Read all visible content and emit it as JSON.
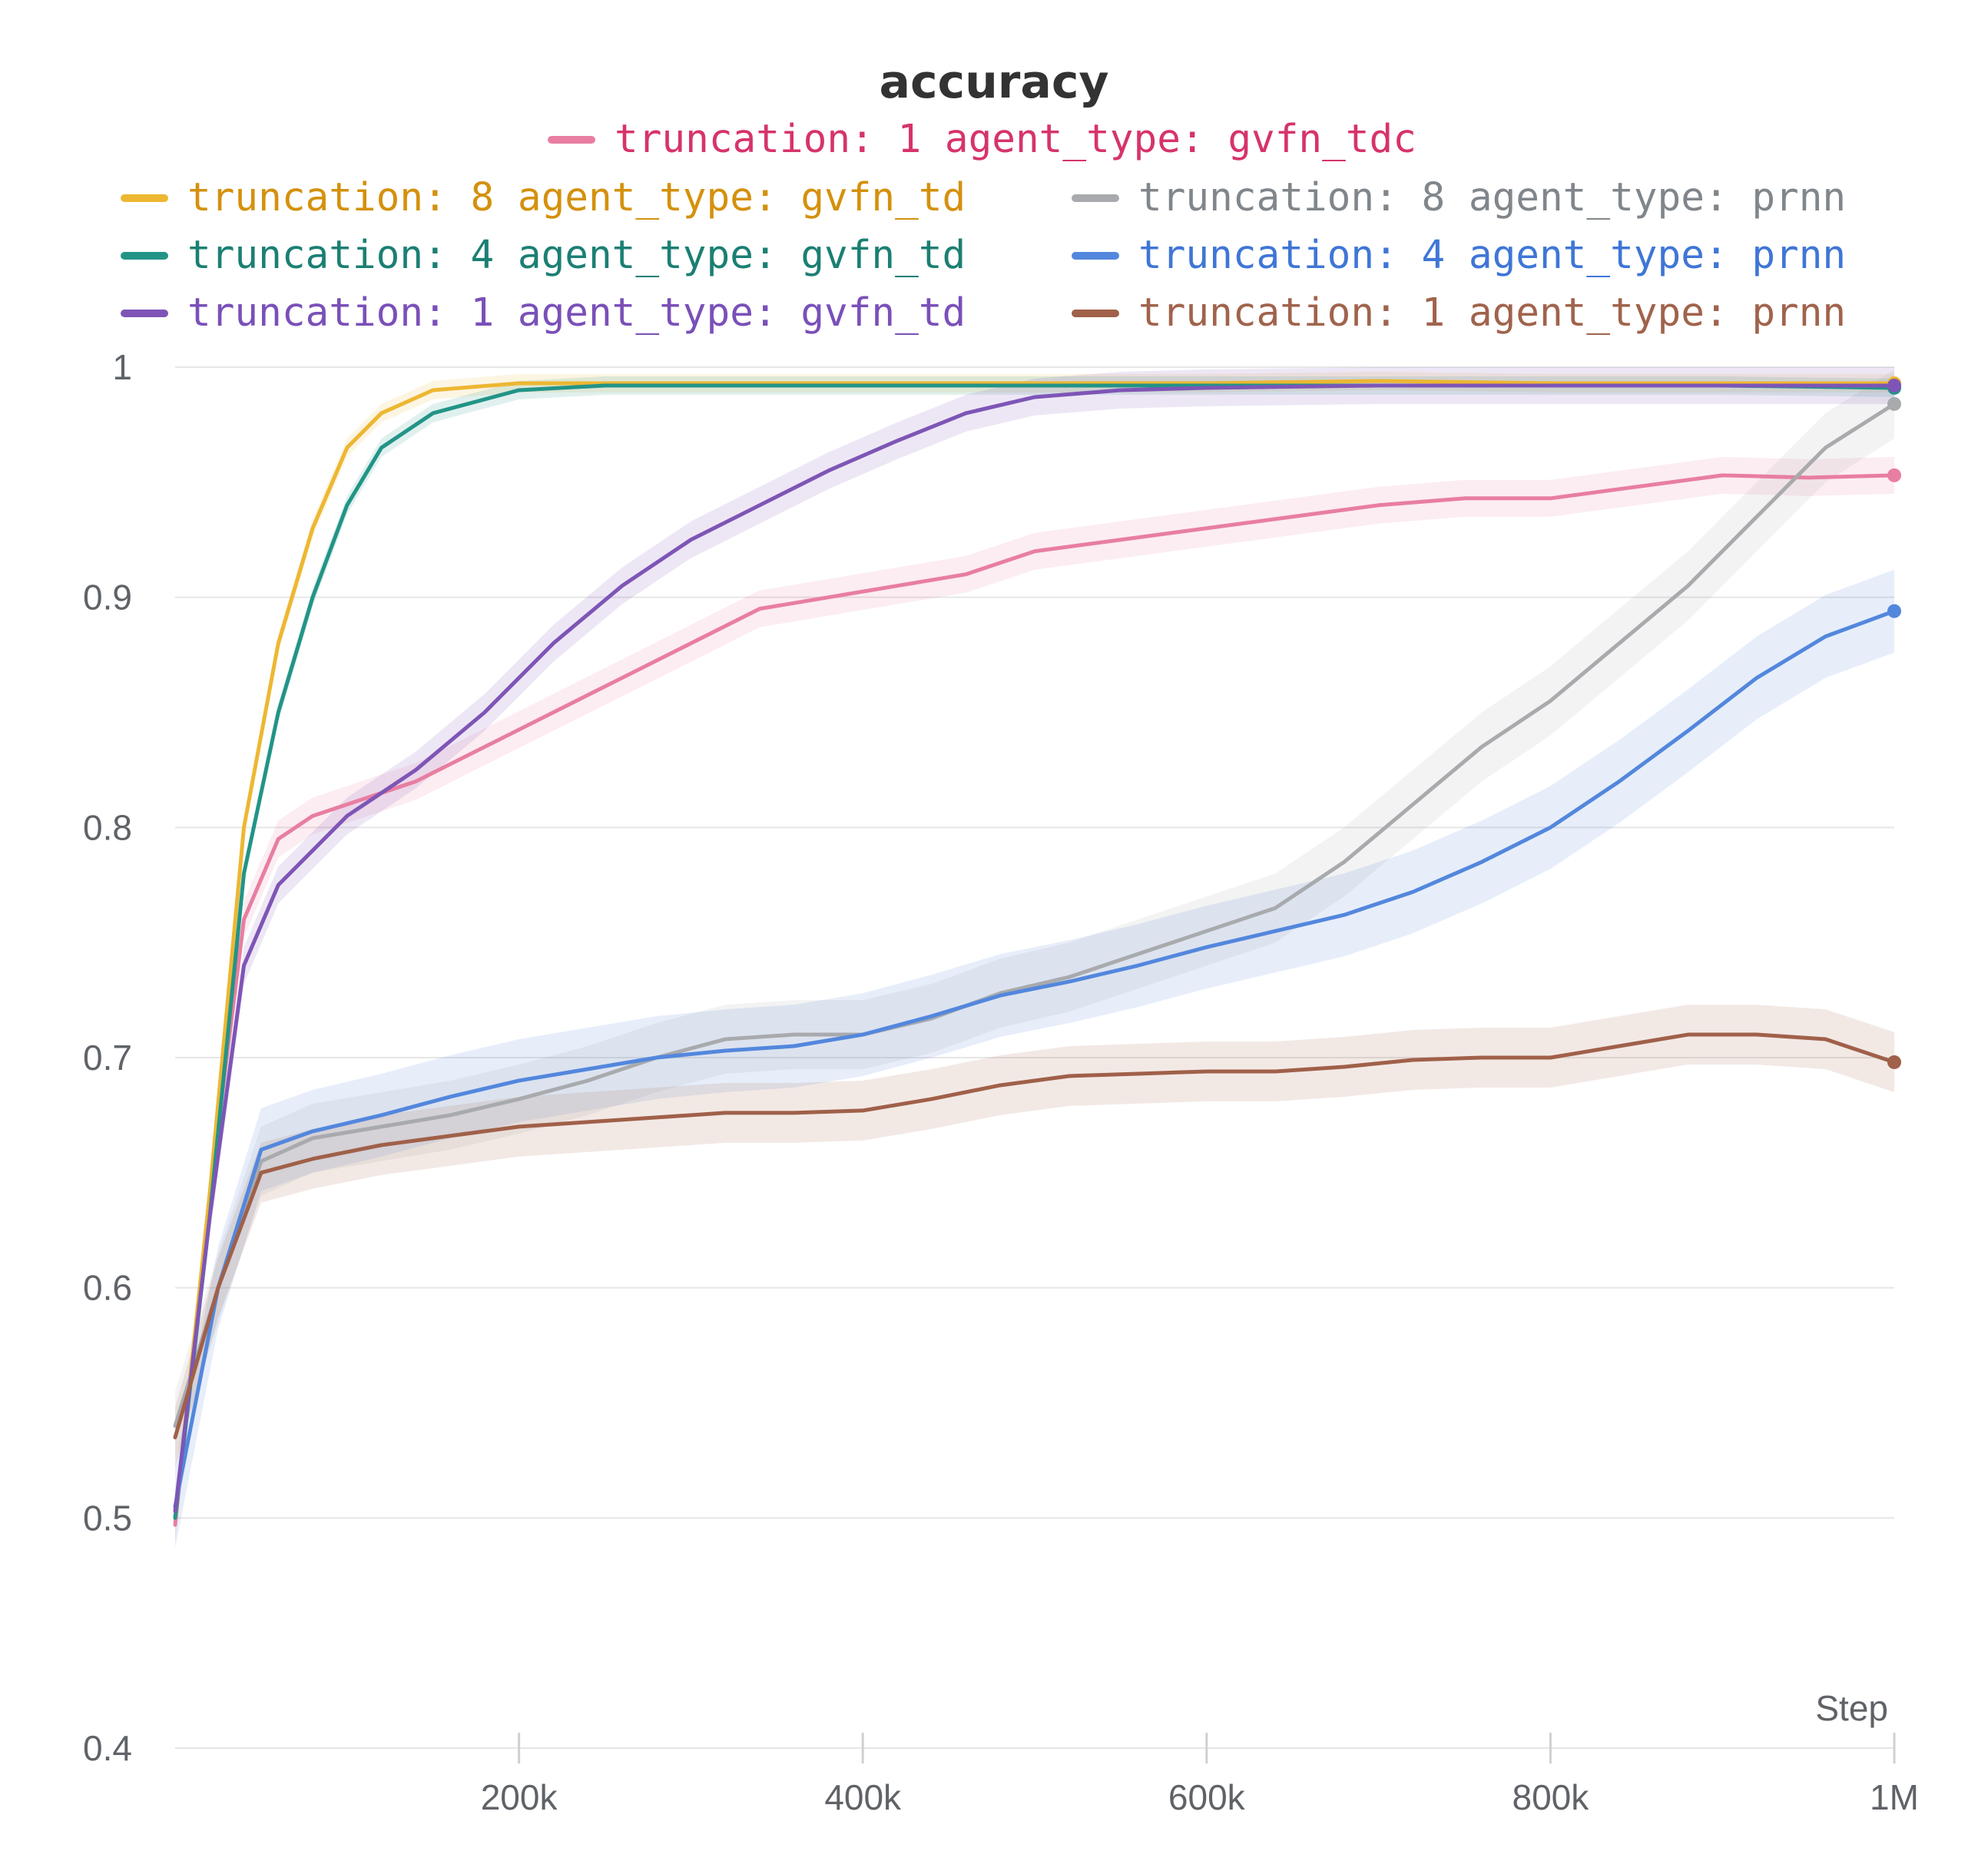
{
  "chart_data": {
    "type": "line",
    "title": "accuracy",
    "xlabel": "Step",
    "ylabel": "",
    "xlim": [
      0,
      1000000
    ],
    "ylim": [
      0.4,
      1.0
    ],
    "x_ticks": [
      {
        "value": 200000,
        "label": "200k"
      },
      {
        "value": 400000,
        "label": "400k"
      },
      {
        "value": 600000,
        "label": "600k"
      },
      {
        "value": 800000,
        "label": "800k"
      },
      {
        "value": 1000000,
        "label": "1M"
      }
    ],
    "y_ticks": [
      {
        "value": 0.4,
        "label": "0.4"
      },
      {
        "value": 0.5,
        "label": "0.5"
      },
      {
        "value": 0.6,
        "label": "0.6"
      },
      {
        "value": 0.7,
        "label": "0.7"
      },
      {
        "value": 0.8,
        "label": "0.8"
      },
      {
        "value": 0.9,
        "label": "0.9"
      },
      {
        "value": 1.0,
        "label": "1"
      }
    ],
    "grid": true,
    "legend_position": "top",
    "series": [
      {
        "name": "truncation: 1 agent_type: gvfn_tdc",
        "color": "#e87ea1",
        "text_color": "#d6336c",
        "band": 0.008,
        "points": [
          [
            0,
            0.497
          ],
          [
            20000,
            0.64
          ],
          [
            40000,
            0.76
          ],
          [
            60000,
            0.795
          ],
          [
            80000,
            0.805
          ],
          [
            100000,
            0.81
          ],
          [
            140000,
            0.82
          ],
          [
            180000,
            0.835
          ],
          [
            220000,
            0.85
          ],
          [
            260000,
            0.865
          ],
          [
            300000,
            0.88
          ],
          [
            340000,
            0.895
          ],
          [
            380000,
            0.9
          ],
          [
            420000,
            0.905
          ],
          [
            460000,
            0.91
          ],
          [
            500000,
            0.92
          ],
          [
            550000,
            0.925
          ],
          [
            600000,
            0.93
          ],
          [
            650000,
            0.935
          ],
          [
            700000,
            0.94
          ],
          [
            750000,
            0.943
          ],
          [
            800000,
            0.943
          ],
          [
            850000,
            0.948
          ],
          [
            900000,
            0.953
          ],
          [
            950000,
            0.952
          ],
          [
            1000000,
            0.953
          ]
        ],
        "end": 0.953
      },
      {
        "name": "truncation: 8 agent_type: gvfn_td",
        "color": "#edb732",
        "text_color": "#d4910d",
        "band": 0.004,
        "points": [
          [
            0,
            0.5
          ],
          [
            20000,
            0.64
          ],
          [
            40000,
            0.8
          ],
          [
            60000,
            0.88
          ],
          [
            80000,
            0.93
          ],
          [
            100000,
            0.965
          ],
          [
            120000,
            0.98
          ],
          [
            150000,
            0.99
          ],
          [
            200000,
            0.993
          ],
          [
            300000,
            0.993
          ],
          [
            400000,
            0.993
          ],
          [
            500000,
            0.993
          ],
          [
            600000,
            0.993
          ],
          [
            700000,
            0.994
          ],
          [
            800000,
            0.993
          ],
          [
            900000,
            0.993
          ],
          [
            1000000,
            0.993
          ]
        ],
        "end": 0.993
      },
      {
        "name": "truncation: 8 agent_type: prnn",
        "color": "#a8aaad",
        "text_color": "#80868b",
        "band": 0.015,
        "points": [
          [
            0,
            0.54
          ],
          [
            25000,
            0.6
          ],
          [
            50000,
            0.655
          ],
          [
            80000,
            0.665
          ],
          [
            120000,
            0.67
          ],
          [
            160000,
            0.675
          ],
          [
            200000,
            0.682
          ],
          [
            240000,
            0.69
          ],
          [
            280000,
            0.7
          ],
          [
            320000,
            0.708
          ],
          [
            360000,
            0.71
          ],
          [
            400000,
            0.71
          ],
          [
            440000,
            0.717
          ],
          [
            480000,
            0.728
          ],
          [
            520000,
            0.735
          ],
          [
            560000,
            0.745
          ],
          [
            600000,
            0.755
          ],
          [
            640000,
            0.765
          ],
          [
            680000,
            0.785
          ],
          [
            720000,
            0.81
          ],
          [
            760000,
            0.835
          ],
          [
            800000,
            0.855
          ],
          [
            840000,
            0.88
          ],
          [
            880000,
            0.905
          ],
          [
            920000,
            0.935
          ],
          [
            960000,
            0.965
          ],
          [
            1000000,
            0.984
          ]
        ],
        "end": 0.984
      },
      {
        "name": "truncation: 4 agent_type: gvfn_td",
        "color": "#229487",
        "text_color": "#1b7f73",
        "band": 0.004,
        "points": [
          [
            0,
            0.5
          ],
          [
            20000,
            0.63
          ],
          [
            40000,
            0.78
          ],
          [
            60000,
            0.85
          ],
          [
            80000,
            0.9
          ],
          [
            100000,
            0.94
          ],
          [
            120000,
            0.965
          ],
          [
            150000,
            0.98
          ],
          [
            200000,
            0.99
          ],
          [
            250000,
            0.992
          ],
          [
            300000,
            0.992
          ],
          [
            400000,
            0.992
          ],
          [
            500000,
            0.992
          ],
          [
            600000,
            0.992
          ],
          [
            700000,
            0.992
          ],
          [
            800000,
            0.992
          ],
          [
            900000,
            0.992
          ],
          [
            1000000,
            0.991
          ]
        ],
        "end": 0.991
      },
      {
        "name": "truncation: 4 agent_type: prnn",
        "color": "#5387dd",
        "text_color": "#3f76d6",
        "band": 0.018,
        "points": [
          [
            0,
            0.505
          ],
          [
            25000,
            0.6
          ],
          [
            50000,
            0.66
          ],
          [
            80000,
            0.668
          ],
          [
            120000,
            0.675
          ],
          [
            160000,
            0.683
          ],
          [
            200000,
            0.69
          ],
          [
            240000,
            0.695
          ],
          [
            280000,
            0.7
          ],
          [
            320000,
            0.703
          ],
          [
            360000,
            0.705
          ],
          [
            400000,
            0.71
          ],
          [
            440000,
            0.718
          ],
          [
            480000,
            0.727
          ],
          [
            520000,
            0.733
          ],
          [
            560000,
            0.74
          ],
          [
            600000,
            0.748
          ],
          [
            640000,
            0.755
          ],
          [
            680000,
            0.762
          ],
          [
            720000,
            0.772
          ],
          [
            760000,
            0.785
          ],
          [
            800000,
            0.8
          ],
          [
            840000,
            0.82
          ],
          [
            880000,
            0.842
          ],
          [
            920000,
            0.865
          ],
          [
            960000,
            0.883
          ],
          [
            1000000,
            0.894
          ]
        ],
        "end": 0.894
      },
      {
        "name": "truncation: 1 agent_type: gvfn_td",
        "color": "#7e55b6",
        "text_color": "#7a50b8",
        "band": 0.008,
        "points": [
          [
            0,
            0.503
          ],
          [
            20000,
            0.63
          ],
          [
            40000,
            0.74
          ],
          [
            60000,
            0.775
          ],
          [
            80000,
            0.79
          ],
          [
            100000,
            0.805
          ],
          [
            140000,
            0.825
          ],
          [
            180000,
            0.85
          ],
          [
            220000,
            0.88
          ],
          [
            260000,
            0.905
          ],
          [
            300000,
            0.925
          ],
          [
            340000,
            0.94
          ],
          [
            380000,
            0.955
          ],
          [
            420000,
            0.968
          ],
          [
            460000,
            0.98
          ],
          [
            500000,
            0.987
          ],
          [
            550000,
            0.99
          ],
          [
            600000,
            0.991
          ],
          [
            700000,
            0.992
          ],
          [
            800000,
            0.992
          ],
          [
            900000,
            0.992
          ],
          [
            1000000,
            0.992
          ]
        ],
        "end": 0.992
      },
      {
        "name": "truncation: 1 agent_type: prnn",
        "color": "#a06049",
        "text_color": "#a0634c",
        "band": 0.013,
        "points": [
          [
            0,
            0.535
          ],
          [
            25000,
            0.6
          ],
          [
            50000,
            0.65
          ],
          [
            80000,
            0.656
          ],
          [
            120000,
            0.662
          ],
          [
            160000,
            0.666
          ],
          [
            200000,
            0.67
          ],
          [
            240000,
            0.672
          ],
          [
            280000,
            0.674
          ],
          [
            320000,
            0.676
          ],
          [
            360000,
            0.676
          ],
          [
            400000,
            0.677
          ],
          [
            440000,
            0.682
          ],
          [
            480000,
            0.688
          ],
          [
            520000,
            0.692
          ],
          [
            560000,
            0.693
          ],
          [
            600000,
            0.694
          ],
          [
            640000,
            0.694
          ],
          [
            680000,
            0.696
          ],
          [
            720000,
            0.699
          ],
          [
            760000,
            0.7
          ],
          [
            800000,
            0.7
          ],
          [
            840000,
            0.705
          ],
          [
            880000,
            0.71
          ],
          [
            920000,
            0.71
          ],
          [
            960000,
            0.708
          ],
          [
            1000000,
            0.698
          ]
        ],
        "end": 0.698
      }
    ],
    "legend_rows": [
      [
        0
      ],
      [
        1,
        2
      ],
      [
        3,
        4
      ],
      [
        5,
        6
      ]
    ]
  }
}
